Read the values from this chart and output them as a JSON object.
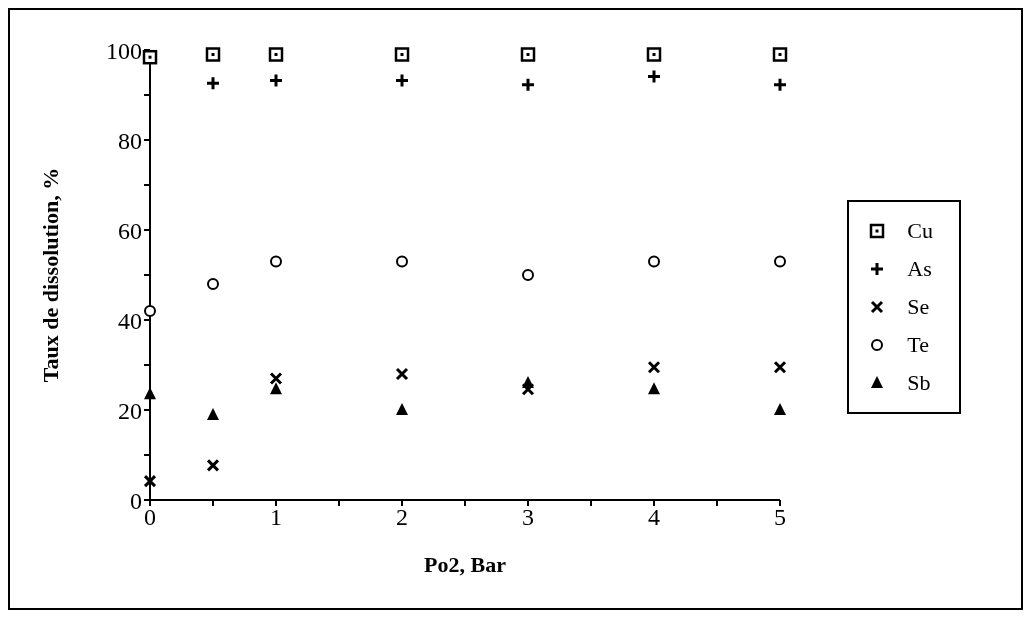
{
  "chart_data": {
    "type": "scatter",
    "xlabel": "Po2, Bar",
    "ylabel": "Taux de dissolution, %",
    "x": [
      0,
      0.5,
      1,
      2,
      3,
      4,
      5
    ],
    "xlim": [
      0,
      5
    ],
    "xticks": [
      0,
      {
        "value": 0.5,
        "label": null
      },
      1,
      {
        "value": 1.5,
        "label": null
      },
      2,
      {
        "value": 2.5,
        "label": null
      },
      3,
      {
        "value": 3.5,
        "label": null
      },
      4,
      {
        "value": 4.5,
        "label": null
      },
      5
    ],
    "ylim": [
      0,
      100
    ],
    "yticks": [
      0,
      {
        "value": 10,
        "label": null
      },
      20,
      {
        "value": 30,
        "label": null
      },
      40,
      {
        "value": 50,
        "label": null
      },
      60,
      {
        "value": 70,
        "label": null
      },
      80,
      {
        "value": 90,
        "label": null
      },
      100
    ],
    "grid": false,
    "legend": "right",
    "series": [
      {
        "name": "Cu",
        "color": "#000000",
        "marker": "square",
        "values": [
          98.4,
          99,
          99,
          99,
          99,
          99,
          99
        ]
      },
      {
        "name": "As",
        "color": "#000000",
        "marker": "plus",
        "values": [
          null,
          92.6,
          93.2,
          93.2,
          92.3,
          94.1,
          92.3
        ]
      },
      {
        "name": "Se",
        "color": "#000000",
        "marker": "cross",
        "values": [
          4.2,
          7.7,
          27,
          28,
          24.6,
          29.5,
          29.5
        ]
      },
      {
        "name": "Te",
        "color": "#000000",
        "marker": "circle",
        "values": [
          42,
          48,
          53,
          53,
          50,
          53,
          53
        ]
      },
      {
        "name": "Sb",
        "color": "#000000",
        "marker": "triangle",
        "values": [
          23.5,
          18.9,
          24.6,
          20,
          26,
          24.6,
          20
        ]
      }
    ]
  }
}
